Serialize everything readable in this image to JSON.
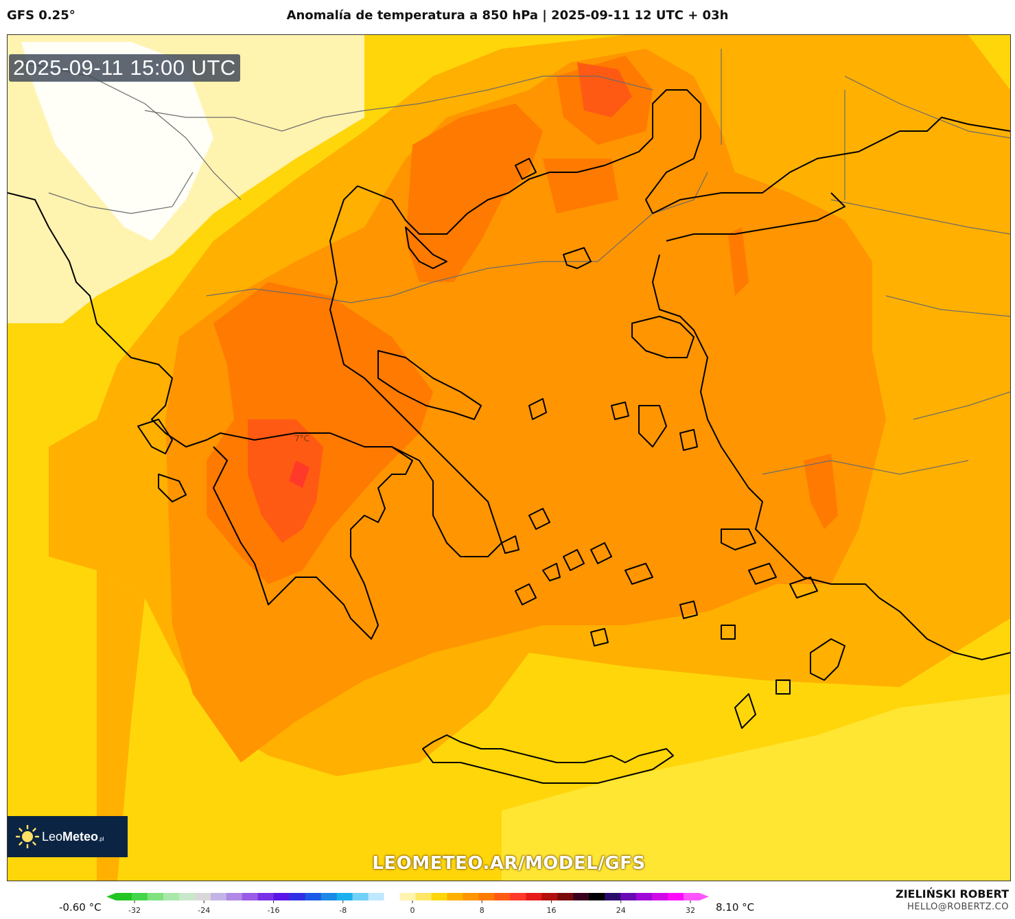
{
  "header": {
    "model": "GFS 0.25°",
    "title": "Anomalía de temperatura a 850 hPa | 2025-09-11 12 UTC + 03h"
  },
  "map": {
    "timestamp": "2025-09-11 15:00 UTC",
    "contour_label": "7°C",
    "website": "LEOMETEO.AR/MODEL/GFS",
    "logo_brand_light": "Leo",
    "logo_brand_bold": "Meteo",
    "logo_brand_suffix": ".pl"
  },
  "legend": {
    "min_label": "-0.60 °C",
    "max_label": "8.10 °C",
    "ticks": [
      "-32",
      "-24",
      "-16",
      "-8",
      "0",
      "8",
      "16",
      "24",
      "32"
    ],
    "colors": [
      "#22c522",
      "#44d64a",
      "#7fe27f",
      "#a9e8a9",
      "#c9e8c9",
      "#d8d8d8",
      "#c4b3e6",
      "#b089e6",
      "#9a5be6",
      "#7a30e6",
      "#5a16e6",
      "#3030e6",
      "#1a5ae6",
      "#1a8ae6",
      "#1ab0f0",
      "#70d0f8",
      "#bfe7ff",
      "#ffffff",
      "#fff3b0",
      "#ffe766",
      "#ffd60a",
      "#ffb000",
      "#ff9500",
      "#ff7a00",
      "#ff5a14",
      "#ff3a28",
      "#e61a1a",
      "#b30f0f",
      "#7a0a0a",
      "#3a0020",
      "#000000",
      "#2a0a6a",
      "#6a0ab4",
      "#a00ad8",
      "#d00ae6",
      "#ff0aff",
      "#ff55ff"
    ]
  },
  "author": {
    "name": "ZIELIŃSKI ROBERT",
    "email": "HELLO@ROBERTZ.CO"
  }
}
